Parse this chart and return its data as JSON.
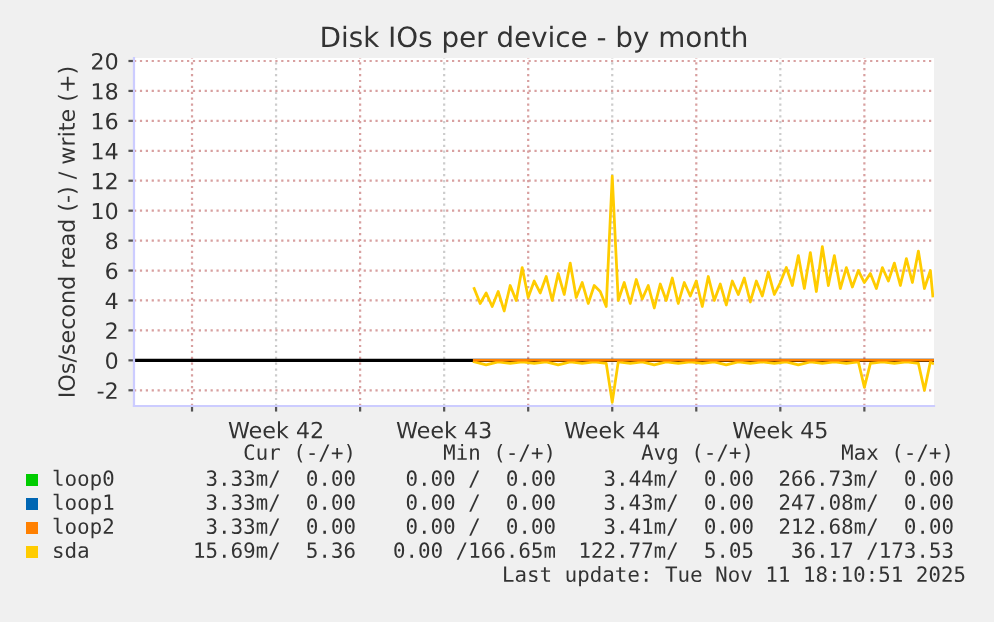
{
  "chart_data": {
    "type": "line",
    "title": "Disk IOs per device - by month",
    "ylabel": "IOs/second read (-) / write (+)",
    "xlim": [
      "2025-10-10T14:00",
      "2025-11-12T21:36"
    ],
    "ylim": [
      -3.05,
      20.2
    ],
    "xticks": [
      {
        "value": "2025-10-13",
        "label": null
      },
      {
        "value": "2025-10-16T12:00",
        "label": "Week 42"
      },
      {
        "value": "2025-10-20",
        "label": null
      },
      {
        "value": "2025-10-23T12:00",
        "label": "Week 43"
      },
      {
        "value": "2025-10-27",
        "label": null
      },
      {
        "value": "2025-10-30T12:00",
        "label": "Week 44"
      },
      {
        "value": "2025-11-03",
        "label": null
      },
      {
        "value": "2025-11-06T12:00",
        "label": "Week 45"
      },
      {
        "value": "2025-11-10",
        "label": null
      }
    ],
    "yticks": [
      -2,
      0,
      2,
      4,
      6,
      8,
      10,
      12,
      14,
      16,
      18,
      20
    ],
    "grid": true,
    "legend": "bottom",
    "line_style": "solid",
    "marker": "none",
    "ref_lines": [
      {
        "axis": "y",
        "value": 0,
        "label": null,
        "color": "#000000"
      }
    ],
    "series": [
      {
        "name": "loop0",
        "color": "#00cc00"
      },
      {
        "name": "loop1",
        "color": "#0066b3"
      },
      {
        "name": "loop2",
        "color": "#ff8000",
        "x": [
          "2025-10-24T18:00",
          "2025-11-12T20:24"
        ],
        "values": [
          0,
          0
        ]
      },
      {
        "name": "sda",
        "color": "#ffcc00",
        "x": [
          "2025-10-24T18:00",
          "2025-10-25T00:00",
          "2025-10-25T06:00",
          "2025-10-25T12:00",
          "2025-10-25T18:00",
          "2025-10-26T00:00",
          "2025-10-26T06:00",
          "2025-10-26T12:00",
          "2025-10-26T18:00",
          "2025-10-27T00:00",
          "2025-10-27T06:00",
          "2025-10-27T12:00",
          "2025-10-27T18:00",
          "2025-10-28T00:00",
          "2025-10-28T06:00",
          "2025-10-28T12:00",
          "2025-10-28T18:00",
          "2025-10-29T00:00",
          "2025-10-29T06:00",
          "2025-10-29T12:00",
          "2025-10-29T18:00",
          "2025-10-30T00:00",
          "2025-10-30T06:00",
          "2025-10-30T12:00",
          "2025-10-30T18:00",
          "2025-10-31T00:00",
          "2025-10-31T06:00",
          "2025-10-31T12:00",
          "2025-10-31T18:00",
          "2025-11-01T00:00",
          "2025-11-01T06:00",
          "2025-11-01T12:00",
          "2025-11-01T18:00",
          "2025-11-02T00:00",
          "2025-11-02T06:00",
          "2025-11-02T12:00",
          "2025-11-02T18:00",
          "2025-11-03T00:00",
          "2025-11-03T06:00",
          "2025-11-03T12:00",
          "2025-11-03T18:00",
          "2025-11-04T00:00",
          "2025-11-04T06:00",
          "2025-11-04T12:00",
          "2025-11-04T18:00",
          "2025-11-05T00:00",
          "2025-11-05T06:00",
          "2025-11-05T12:00",
          "2025-11-05T18:00",
          "2025-11-06T00:00",
          "2025-11-06T06:00",
          "2025-11-06T12:00",
          "2025-11-06T18:00",
          "2025-11-07T00:00",
          "2025-11-07T06:00",
          "2025-11-07T12:00",
          "2025-11-07T18:00",
          "2025-11-08T00:00",
          "2025-11-08T06:00",
          "2025-11-08T12:00",
          "2025-11-08T18:00",
          "2025-11-09T00:00",
          "2025-11-09T06:00",
          "2025-11-09T12:00",
          "2025-11-09T18:00",
          "2025-11-10T00:00",
          "2025-11-10T06:00",
          "2025-11-10T12:00",
          "2025-11-10T18:00",
          "2025-11-11T00:00",
          "2025-11-11T06:00",
          "2025-11-11T12:00",
          "2025-11-11T18:00",
          "2025-11-12T00:00",
          "2025-11-12T06:00",
          "2025-11-12T12:00",
          "2025-11-12T18:00",
          "2025-11-12T20:24"
        ],
        "values": [
          4.8,
          3.8,
          4.5,
          3.6,
          4.6,
          3.3,
          5.0,
          4.0,
          6.2,
          4.2,
          5.3,
          4.5,
          5.6,
          4.0,
          5.8,
          4.4,
          6.5,
          4.2,
          5.2,
          3.8,
          5.0,
          4.6,
          3.6,
          12.3,
          4.0,
          5.2,
          3.8,
          5.4,
          4.1,
          5.0,
          3.5,
          5.1,
          4.0,
          5.5,
          3.8,
          5.2,
          4.3,
          5.3,
          3.6,
          5.6,
          4.0,
          5.1,
          3.7,
          5.3,
          4.4,
          5.5,
          3.9,
          5.3,
          4.3,
          5.9,
          4.4,
          5.2,
          6.2,
          5.0,
          7.0,
          4.8,
          7.2,
          4.6,
          7.6,
          5.0,
          7.0,
          4.8,
          6.2,
          4.9,
          6.0,
          5.2,
          5.8,
          4.8,
          6.2,
          5.3,
          6.5,
          5.0,
          6.8,
          5.2,
          7.3,
          4.8,
          6.0,
          4.3
        ]
      },
      {
        "color": "#ffcc00",
        "x": [
          "2025-10-24T18:00",
          "2025-10-25T06:00",
          "2025-10-25T18:00",
          "2025-10-26T06:00",
          "2025-10-26T18:00",
          "2025-10-27T06:00",
          "2025-10-27T18:00",
          "2025-10-28T06:00",
          "2025-10-28T18:00",
          "2025-10-29T06:00",
          "2025-10-29T18:00",
          "2025-10-30T06:00",
          "2025-10-30T12:00",
          "2025-10-30T18:00",
          "2025-10-31T06:00",
          "2025-10-31T18:00",
          "2025-11-01T06:00",
          "2025-11-01T18:00",
          "2025-11-02T06:00",
          "2025-11-02T18:00",
          "2025-11-03T06:00",
          "2025-11-03T18:00",
          "2025-11-04T06:00",
          "2025-11-04T18:00",
          "2025-11-05T06:00",
          "2025-11-05T18:00",
          "2025-11-06T06:00",
          "2025-11-06T18:00",
          "2025-11-07T06:00",
          "2025-11-07T18:00",
          "2025-11-08T06:00",
          "2025-11-08T18:00",
          "2025-11-09T06:00",
          "2025-11-09T18:00",
          "2025-11-10T00:00",
          "2025-11-10T06:00",
          "2025-11-10T18:00",
          "2025-11-11T06:00",
          "2025-11-11T18:00",
          "2025-11-12T06:00",
          "2025-11-12T12:00",
          "2025-11-12T18:00",
          "2025-11-12T20:24"
        ],
        "values": [
          -0.1,
          -0.3,
          -0.1,
          -0.2,
          -0.1,
          -0.2,
          -0.1,
          -0.3,
          -0.1,
          -0.2,
          -0.1,
          -0.2,
          -2.8,
          -0.1,
          -0.2,
          -0.1,
          -0.3,
          -0.1,
          -0.2,
          -0.1,
          -0.2,
          -0.1,
          -0.3,
          -0.1,
          -0.2,
          -0.1,
          -0.2,
          -0.1,
          -0.3,
          -0.1,
          -0.2,
          -0.1,
          -0.2,
          -0.1,
          -1.8,
          -0.2,
          -0.1,
          -0.2,
          -0.1,
          -0.2,
          -2.0,
          -0.1,
          -0.2
        ]
      }
    ],
    "annotations": [
      "Cur (-/+)",
      "Min (-/+)",
      "Avg (-/+)",
      "Max (-/+)",
      "3.33m/  0.00",
      "0.00 /  0.00",
      "3.44m/  0.00",
      "266.73m/  0.00",
      "3.33m/  0.00",
      "0.00 /  0.00",
      "3.43m/  0.00",
      "247.08m/  0.00",
      "3.33m/  0.00",
      "0.00 /  0.00",
      "3.41m/  0.00",
      "212.68m/  0.00",
      "15.69m/  5.36",
      "0.00 /166.65m",
      "122.77m/  5.05",
      "36.17 /173.53",
      "Last update: Tue Nov 11 18:10:51 2025"
    ]
  }
}
